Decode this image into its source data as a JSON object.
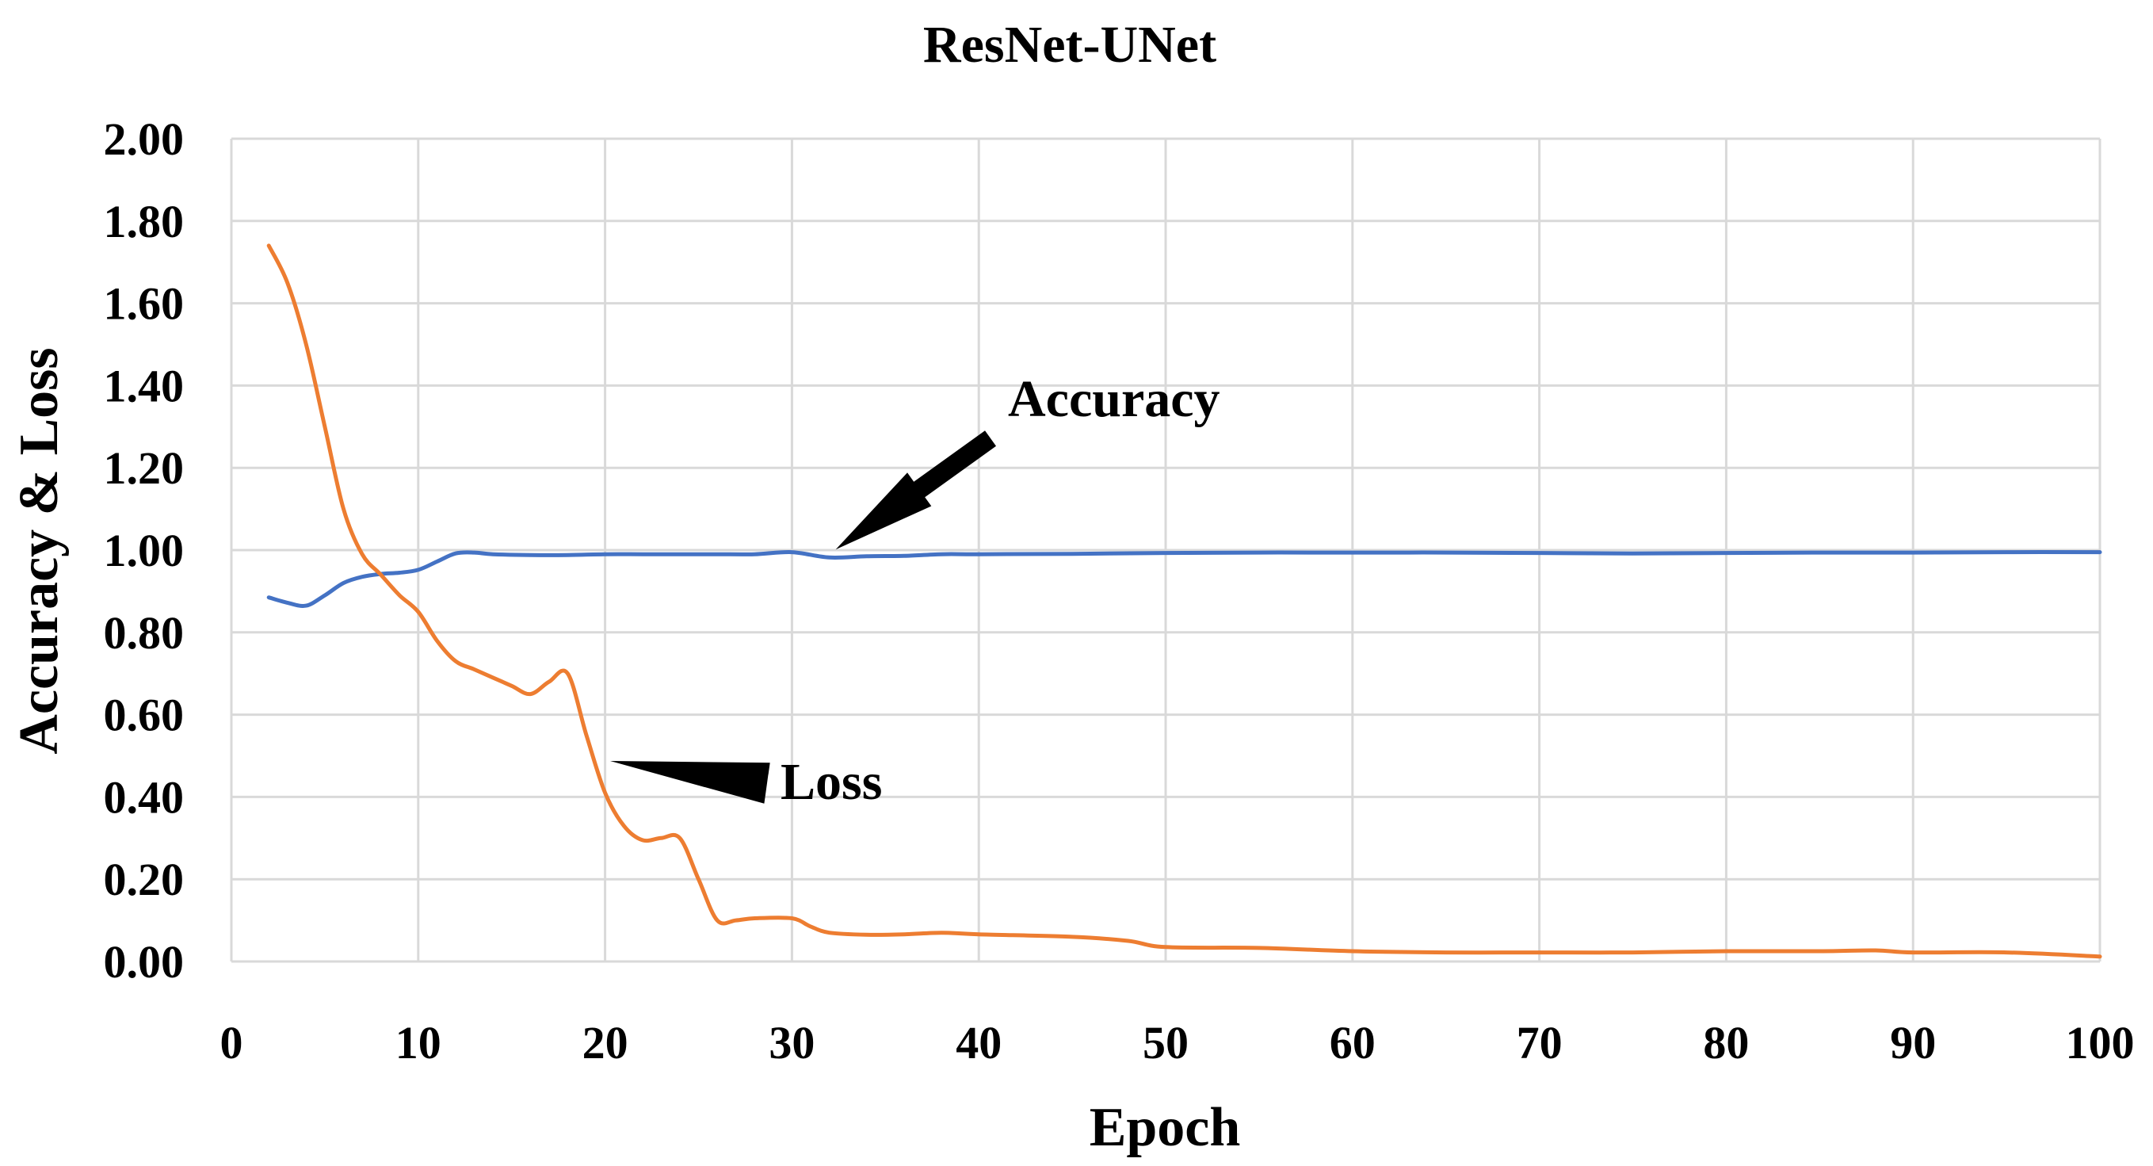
{
  "chart_data": {
    "type": "line",
    "title": "ResNet-UNet",
    "xlabel": "Epoch",
    "ylabel": "Accuracy & Loss",
    "xlim": [
      0,
      100
    ],
    "ylim": [
      0,
      2
    ],
    "x_ticks": [
      "0",
      "10",
      "20",
      "30",
      "40",
      "50",
      "60",
      "70",
      "80",
      "90",
      "100"
    ],
    "y_ticks": [
      "0.00",
      "0.20",
      "0.40",
      "0.60",
      "0.80",
      "1.00",
      "1.20",
      "1.40",
      "1.60",
      "1.80",
      "2.00"
    ],
    "grid": "vertical and horizontal",
    "series": [
      {
        "name": "Accuracy",
        "color": "#4472c4",
        "x": [
          2,
          3,
          4,
          5,
          6,
          7,
          8,
          9,
          10,
          11,
          12,
          13,
          14,
          16,
          18,
          20,
          22,
          24,
          26,
          28,
          30,
          32,
          34,
          36,
          38,
          40,
          45,
          50,
          55,
          60,
          65,
          70,
          75,
          80,
          85,
          90,
          95,
          100
        ],
        "values": [
          0.885,
          0.872,
          0.865,
          0.89,
          0.92,
          0.935,
          0.942,
          0.945,
          0.952,
          0.972,
          0.992,
          0.994,
          0.99,
          0.988,
          0.988,
          0.99,
          0.99,
          0.99,
          0.99,
          0.99,
          0.995,
          0.982,
          0.985,
          0.986,
          0.99,
          0.99,
          0.991,
          0.993,
          0.994,
          0.994,
          0.994,
          0.993,
          0.992,
          0.993,
          0.994,
          0.994,
          0.995,
          0.995
        ]
      },
      {
        "name": "Loss",
        "color": "#ed7d31",
        "x": [
          2,
          3,
          4,
          5,
          6,
          7,
          8,
          9,
          10,
          11,
          12,
          13,
          14,
          15,
          16,
          17,
          18,
          19,
          20,
          21,
          22,
          23,
          24,
          25,
          26,
          27,
          28,
          30,
          31,
          32,
          34,
          36,
          38,
          40,
          45,
          48,
          50,
          55,
          60,
          65,
          70,
          75,
          80,
          85,
          88,
          90,
          95,
          100
        ],
        "values": [
          1.74,
          1.65,
          1.5,
          1.3,
          1.1,
          0.99,
          0.94,
          0.89,
          0.85,
          0.78,
          0.73,
          0.71,
          0.69,
          0.67,
          0.65,
          0.68,
          0.7,
          0.55,
          0.41,
          0.33,
          0.295,
          0.3,
          0.3,
          0.2,
          0.1,
          0.1,
          0.105,
          0.105,
          0.085,
          0.07,
          0.065,
          0.066,
          0.07,
          0.066,
          0.06,
          0.05,
          0.035,
          0.033,
          0.025,
          0.022,
          0.022,
          0.022,
          0.025,
          0.025,
          0.027,
          0.022,
          0.022,
          0.012
        ]
      }
    ],
    "annotations": [
      {
        "text": "Accuracy",
        "target_x": 32,
        "target_y": 0.99
      },
      {
        "text": "Loss",
        "target_x": 19,
        "target_y": 0.58
      }
    ]
  }
}
